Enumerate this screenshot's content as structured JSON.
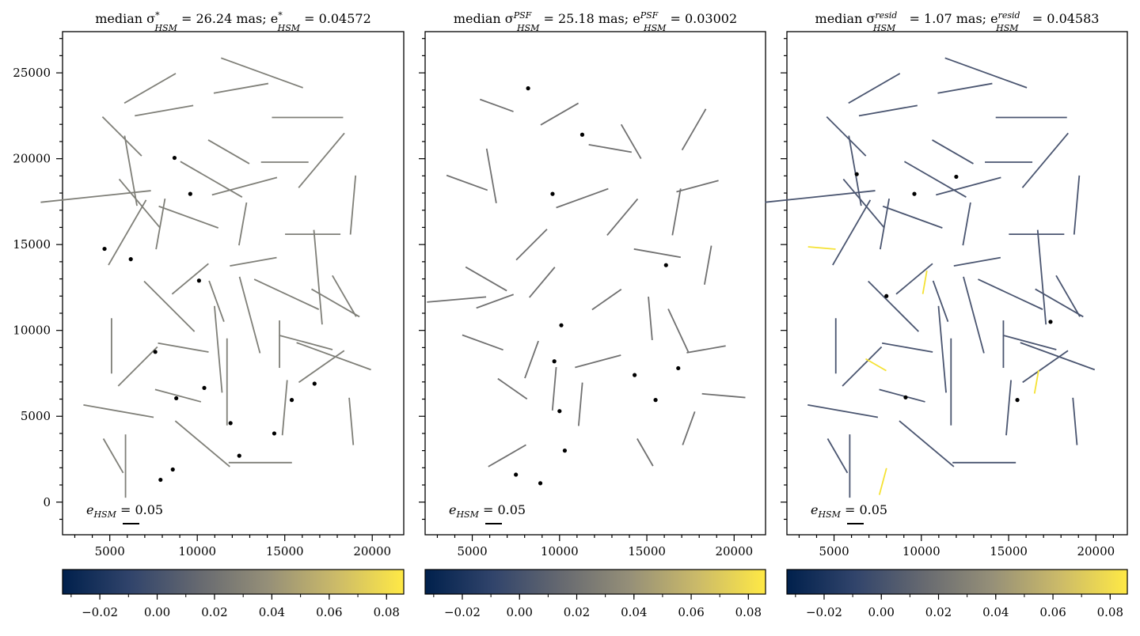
{
  "chart_data": [
    {
      "type": "whisker",
      "title": {
        "pre": "median σ",
        "sup1": "*",
        "sub1": "HSM",
        "mid": " = 26.24 mas; e",
        "sup2": "*",
        "sub2": "HSM",
        "post": " = 0.04572"
      },
      "xlim": [
        2300,
        21800
      ],
      "ylim": [
        -1900,
        27400
      ],
      "xticks": [
        5000,
        10000,
        15000,
        20000
      ],
      "yticks": [
        0,
        5000,
        10000,
        15000,
        20000,
        25000
      ],
      "colorbar": {
        "range": [
          -0.033,
          0.086
        ],
        "ticks": [
          "−0.02",
          "0.00",
          "0.02",
          "0.04",
          "0.06",
          "0.08"
        ],
        "tick_values": [
          -0.02,
          0,
          0.02,
          0.04,
          0.06,
          0.08
        ]
      },
      "scale_label": {
        "pre": "e",
        "sub": "HSM",
        "post": " = 0.05"
      },
      "line_color": "#7f7f78",
      "points": [
        [
          8700,
          20050
        ],
        [
          9600,
          17950
        ],
        [
          4700,
          14750
        ],
        [
          6200,
          14150
        ],
        [
          10100,
          12900
        ],
        [
          7600,
          8750
        ],
        [
          8800,
          6050
        ],
        [
          10400,
          6650
        ],
        [
          11900,
          4600
        ],
        [
          15400,
          5950
        ],
        [
          16700,
          6900
        ],
        [
          14400,
          4000
        ],
        [
          8600,
          1900
        ],
        [
          7900,
          1300
        ],
        [
          12400,
          2700
        ]
      ],
      "whiskers": [
        [
          6200,
          19300,
          100,
          90
        ],
        [
          9500,
          16600,
          -20,
          80
        ],
        [
          5100,
          9100,
          90,
          70
        ],
        [
          11700,
          7000,
          90,
          110
        ],
        [
          16200,
          9300,
          -15,
          70
        ],
        [
          15100,
          12100,
          -25,
          90
        ],
        [
          17900,
          11600,
          -30,
          70
        ],
        [
          16300,
          22400,
          0,
          90
        ],
        [
          12500,
          24100,
          10,
          70
        ],
        [
          6600,
          7900,
          45,
          70
        ],
        [
          10800,
          18800,
          150,
          90
        ],
        [
          17100,
          19900,
          50,
          90
        ],
        [
          6700,
          17400,
          -50,
          80
        ],
        [
          4200,
          17800,
          6,
          140
        ],
        [
          8900,
          6200,
          165,
          60
        ],
        [
          5500,
          5300,
          -10,
          90
        ],
        [
          15000,
          5500,
          85,
          70
        ],
        [
          7300,
          24100,
          30,
          75
        ],
        [
          13700,
          25000,
          -20,
          110
        ],
        [
          5900,
          2100,
          90,
          80
        ],
        [
          10300,
          3400,
          -40,
          90
        ],
        [
          18400,
          12000,
          -60,
          60
        ],
        [
          16900,
          13100,
          95,
          120
        ],
        [
          8400,
          11400,
          135,
          90
        ],
        [
          13200,
          14000,
          10,
          60
        ],
        [
          6000,
          15700,
          60,
          95
        ],
        [
          5700,
          21300,
          -45,
          70
        ],
        [
          12700,
          18400,
          15,
          85
        ],
        [
          11200,
          8900,
          -85,
          110
        ],
        [
          8100,
          22800,
          10,
          75
        ],
        [
          17800,
          8500,
          -20,
          100
        ],
        [
          13600,
          2300,
          0,
          80
        ],
        [
          9600,
          13000,
          40,
          60
        ],
        [
          12600,
          16200,
          80,
          55
        ],
        [
          15000,
          19800,
          0,
          60
        ],
        [
          14700,
          9200,
          90,
          60
        ],
        [
          18900,
          17300,
          85,
          75
        ],
        [
          16600,
          15600,
          0,
          70
        ],
        [
          7900,
          16200,
          80,
          65
        ],
        [
          9200,
          9000,
          170,
          65
        ],
        [
          5200,
          2700,
          120,
          50
        ],
        [
          13000,
          10900,
          -75,
          100
        ],
        [
          11800,
          20400,
          -30,
          60
        ],
        [
          17100,
          7900,
          35,
          70
        ],
        [
          11100,
          11700,
          110,
          55
        ],
        [
          18800,
          4700,
          95,
          60
        ]
      ]
    },
    {
      "type": "whisker",
      "title": {
        "pre": "median σ",
        "sup1": "PSF",
        "sub1": "HSM",
        "mid": " = 25.18 mas; e",
        "sup2": "PSF",
        "sub2": "HSM",
        "post": " = 0.03002"
      },
      "xlim": [
        2300,
        21800
      ],
      "ylim": [
        -1900,
        27400
      ],
      "xticks": [
        5000,
        10000,
        15000,
        20000
      ],
      "yticks": [
        0,
        5000,
        10000,
        15000,
        20000,
        25000
      ],
      "colorbar": {
        "range": [
          -0.033,
          0.086
        ],
        "ticks": [
          "−0.02",
          "0.00",
          "0.02",
          "0.04",
          "0.06",
          "0.08"
        ],
        "tick_values": [
          -0.02,
          0,
          0.02,
          0.04,
          0.06,
          0.08
        ]
      },
      "scale_label": {
        "pre": "e",
        "sub": "HSM",
        "post": " = 0.05"
      },
      "line_color": "#707070",
      "points": [
        [
          8200,
          24100
        ],
        [
          11300,
          21400
        ],
        [
          9600,
          17950
        ],
        [
          16100,
          13800
        ],
        [
          10100,
          10300
        ],
        [
          9700,
          8200
        ],
        [
          14300,
          7400
        ],
        [
          16800,
          7800
        ],
        [
          15500,
          5950
        ],
        [
          10000,
          5300
        ],
        [
          10300,
          3000
        ],
        [
          7500,
          1600
        ],
        [
          8900,
          1100
        ]
      ],
      "whiskers": [
        [
          6100,
          19000,
          100,
          70
        ],
        [
          12900,
          20600,
          -10,
          55
        ],
        [
          5800,
          13000,
          -30,
          60
        ],
        [
          8400,
          15000,
          45,
          55
        ],
        [
          11300,
          17700,
          20,
          70
        ],
        [
          15600,
          14500,
          170,
          60
        ],
        [
          6300,
          11700,
          20,
          50
        ],
        [
          16800,
          10000,
          -65,
          60
        ],
        [
          9700,
          6600,
          85,
          55
        ],
        [
          12200,
          8200,
          15,
          60
        ],
        [
          18400,
          8900,
          10,
          50
        ],
        [
          14900,
          2900,
          120,
          40
        ],
        [
          7000,
          2700,
          30,
          55
        ],
        [
          13600,
          16600,
          50,
          60
        ],
        [
          17900,
          18400,
          15,
          55
        ],
        [
          17700,
          21700,
          60,
          60
        ],
        [
          7300,
          6600,
          -35,
          45
        ],
        [
          10000,
          22600,
          30,
          55
        ],
        [
          14100,
          21000,
          -60,
          50
        ],
        [
          19400,
          6200,
          -5,
          55
        ],
        [
          8400,
          8300,
          70,
          50
        ],
        [
          11200,
          5700,
          85,
          55
        ],
        [
          6400,
          23100,
          -20,
          45
        ],
        [
          16700,
          16900,
          80,
          60
        ],
        [
          4700,
          18600,
          -20,
          55
        ],
        [
          12700,
          11800,
          35,
          45
        ],
        [
          18500,
          13800,
          80,
          50
        ],
        [
          15200,
          10700,
          95,
          55
        ],
        [
          9000,
          12800,
          50,
          50
        ],
        [
          5600,
          9300,
          160,
          55
        ],
        [
          4100,
          11800,
          5,
          75
        ],
        [
          17400,
          4300,
          70,
          45
        ]
      ]
    },
    {
      "type": "whisker",
      "title": {
        "pre": "median σ",
        "sup1": "resid",
        "sub1": "HSM",
        "mid": " = 1.07 mas; e",
        "sup2": "resid",
        "sub2": "HSM",
        "post": " = 0.04583"
      },
      "xlim": [
        2300,
        21800
      ],
      "ylim": [
        -1900,
        27400
      ],
      "xticks": [
        5000,
        10000,
        15000,
        20000
      ],
      "yticks": [
        0,
        5000,
        10000,
        15000,
        20000,
        25000
      ],
      "colorbar": {
        "range": [
          -0.033,
          0.086
        ],
        "ticks": [
          "−0.02",
          "0.00",
          "0.02",
          "0.04",
          "0.06",
          "0.08"
        ],
        "tick_values": [
          -0.02,
          0,
          0.02,
          0.04,
          0.06,
          0.08
        ]
      },
      "scale_label": {
        "pre": "e",
        "sub": "HSM",
        "post": " = 0.05"
      },
      "line_color": "#4a5570",
      "accent_color": "#f5e234",
      "points": [
        [
          6300,
          19100
        ],
        [
          9600,
          17950
        ],
        [
          12000,
          18950
        ],
        [
          8000,
          12000
        ],
        [
          17400,
          10500
        ],
        [
          9100,
          6100
        ],
        [
          15500,
          5950
        ]
      ],
      "whiskers": [
        [
          6200,
          19300,
          100,
          90
        ],
        [
          9500,
          16600,
          -20,
          80
        ],
        [
          5100,
          9100,
          90,
          70
        ],
        [
          11700,
          7000,
          90,
          110
        ],
        [
          16200,
          9300,
          -15,
          70
        ],
        [
          15100,
          12100,
          -25,
          90
        ],
        [
          17900,
          11600,
          -30,
          70
        ],
        [
          16300,
          22400,
          0,
          90
        ],
        [
          12500,
          24100,
          10,
          70
        ],
        [
          6600,
          7900,
          45,
          70
        ],
        [
          10800,
          18800,
          150,
          90
        ],
        [
          17100,
          19900,
          50,
          90
        ],
        [
          6700,
          17400,
          -50,
          80
        ],
        [
          4200,
          17800,
          6,
          140
        ],
        [
          8900,
          6200,
          165,
          60
        ],
        [
          5500,
          5300,
          -10,
          90
        ],
        [
          15000,
          5500,
          85,
          70
        ],
        [
          7300,
          24100,
          30,
          75
        ],
        [
          13700,
          25000,
          -20,
          110
        ],
        [
          5900,
          2100,
          90,
          80
        ],
        [
          10300,
          3400,
          -40,
          90
        ],
        [
          18400,
          12000,
          -60,
          60
        ],
        [
          16900,
          13100,
          95,
          120
        ],
        [
          8400,
          11400,
          135,
          90
        ],
        [
          13200,
          14000,
          10,
          60
        ],
        [
          6000,
          15700,
          60,
          95
        ],
        [
          5700,
          21300,
          -45,
          70
        ],
        [
          12700,
          18400,
          15,
          85
        ],
        [
          11200,
          8900,
          -85,
          110
        ],
        [
          8100,
          22800,
          10,
          75
        ],
        [
          17800,
          8500,
          -20,
          100
        ],
        [
          13600,
          2300,
          0,
          80
        ],
        [
          9600,
          13000,
          40,
          60
        ],
        [
          12600,
          16200,
          80,
          55
        ],
        [
          15000,
          19800,
          0,
          60
        ],
        [
          14700,
          9200,
          90,
          60
        ],
        [
          18900,
          17300,
          85,
          75
        ],
        [
          16600,
          15600,
          0,
          70
        ],
        [
          7900,
          16200,
          80,
          65
        ],
        [
          9200,
          9000,
          170,
          65
        ],
        [
          5200,
          2700,
          120,
          50
        ],
        [
          13000,
          10900,
          -75,
          100
        ],
        [
          11800,
          20400,
          -30,
          60
        ],
        [
          17100,
          7900,
          35,
          70
        ],
        [
          11100,
          11700,
          110,
          55
        ],
        [
          18800,
          4700,
          95,
          60
        ]
      ],
      "accent_whiskers": [
        [
          4300,
          14800,
          -5,
          35
        ],
        [
          10200,
          12800,
          80,
          30
        ],
        [
          7400,
          8000,
          -30,
          30
        ],
        [
          16600,
          7000,
          80,
          30
        ],
        [
          7800,
          1200,
          75,
          35
        ]
      ]
    }
  ]
}
